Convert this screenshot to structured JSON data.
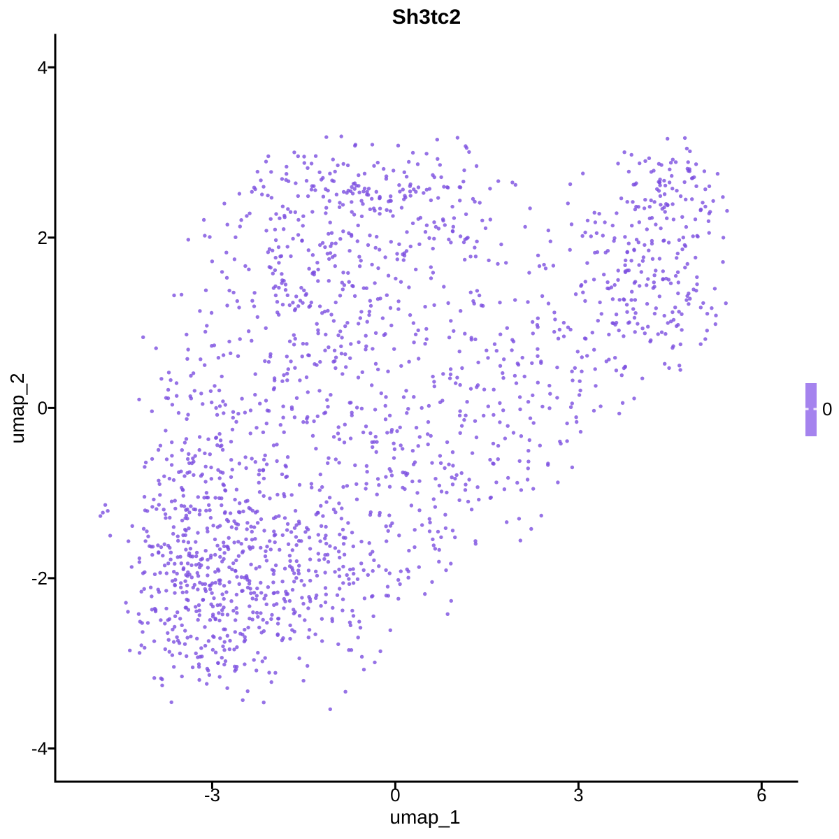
{
  "page": {
    "background": "#ffffff",
    "description": "Seurat-style UMAP feature plot of gene Sh3tc2; all cells share expression value 0 and are drawn in purple"
  },
  "chart_data": {
    "type": "scatter",
    "title": "Sh3tc2",
    "xlabel": "umap_1",
    "ylabel": "umap_2",
    "xlim": [
      -5.57,
      6.58
    ],
    "ylim": [
      -4.39,
      4.38
    ],
    "x_ticks": [
      -3,
      0,
      3,
      6
    ],
    "y_ticks": [
      -4,
      -2,
      0,
      2,
      4
    ],
    "grid": "off",
    "legend": {
      "type": "colorbar",
      "position": "right",
      "values": [
        "0"
      ],
      "bar_color": "#a583ee",
      "tick_color": "#ffffff"
    },
    "series_name": "cells (Sh3tc2 expression = 0)",
    "n_points_approx": 1933,
    "point": {
      "color": "#7c4fe0",
      "opacity": 0.8,
      "rendered_color": "#9b7de2",
      "radius": 2.7
    },
    "generation": {
      "seed": 42,
      "bounds": {
        "x": [
          -4.45,
          5.45
        ],
        "y": [
          -3.55,
          3.2
        ]
      },
      "clips": [
        {
          "kind": "upper",
          "a": 0.85,
          "b": 4.9,
          "when_x_below": -1.2
        },
        {
          "kind": "lower",
          "a": 0.75,
          "b": -3.1,
          "when_x_above": -0.5
        }
      ],
      "clusters": [
        {
          "name": "lower-left-dense",
          "cx": -2.9,
          "cy": -2.25,
          "sx": 0.7,
          "sy": 0.55,
          "n": 280
        },
        {
          "name": "left-low-edge",
          "cx": -3.8,
          "cy": -1.8,
          "sx": 0.35,
          "sy": 0.5,
          "n": 70
        },
        {
          "name": "left-mid",
          "cx": -3.2,
          "cy": -0.7,
          "sx": 0.55,
          "sy": 0.75,
          "n": 180
        },
        {
          "name": "center-low",
          "cx": -1.3,
          "cy": -1.9,
          "sx": 0.85,
          "sy": 0.65,
          "n": 240
        },
        {
          "name": "center",
          "cx": -1.0,
          "cy": 0.1,
          "sx": 1.0,
          "sy": 0.85,
          "n": 220
        },
        {
          "name": "upper-band",
          "cx": -1.2,
          "cy": 1.5,
          "sx": 1.15,
          "sy": 0.6,
          "n": 190
        },
        {
          "name": "top-band",
          "cx": -0.8,
          "cy": 2.55,
          "sx": 1.0,
          "sy": 0.33,
          "n": 140
        },
        {
          "name": "top-mid-right",
          "cx": 0.55,
          "cy": 2.3,
          "sx": 0.65,
          "sy": 0.45,
          "n": 70
        },
        {
          "name": "mid-right",
          "cx": 0.9,
          "cy": -0.7,
          "sx": 0.75,
          "sy": 0.75,
          "n": 110
        },
        {
          "name": "diag-bridge",
          "cx": 1.7,
          "cy": 0.4,
          "sx": 0.7,
          "sy": 0.7,
          "n": 85
        },
        {
          "name": "right-arm",
          "cx": 3.1,
          "cy": 1.0,
          "sx": 0.65,
          "sy": 0.8,
          "n": 95
        },
        {
          "name": "right-cluster",
          "cx": 4.35,
          "cy": 1.6,
          "sx": 0.6,
          "sy": 0.7,
          "n": 195
        },
        {
          "name": "right-top",
          "cx": 4.5,
          "cy": 2.65,
          "sx": 0.38,
          "sy": 0.26,
          "n": 50
        }
      ],
      "extra_points": [
        [
          -4.75,
          -1.14
        ],
        [
          -4.79,
          -1.23
        ],
        [
          -4.83,
          -1.27
        ],
        [
          -4.71,
          -1.21
        ],
        [
          -4.67,
          -1.5
        ],
        [
          -4.12,
          -1.42
        ],
        [
          -4.07,
          -1.45
        ],
        [
          -4.0,
          -1.63
        ]
      ]
    }
  }
}
